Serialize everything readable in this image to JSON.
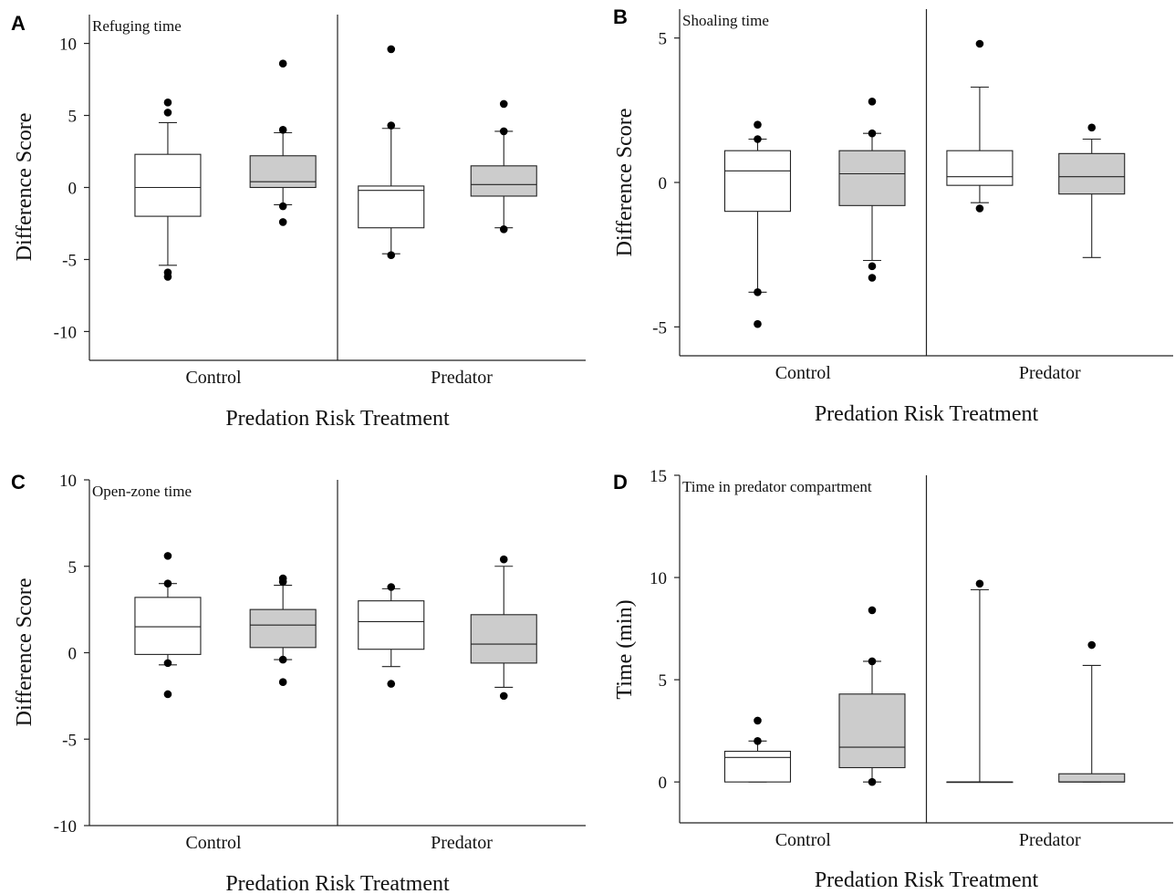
{
  "figure": {
    "background": "#ffffff",
    "box_colors": {
      "Control group": "#ffffff",
      "Treatment group": "#cccccc"
    },
    "line_color": "#222222",
    "outlier_color": "#000000"
  },
  "chart_data": [
    {
      "panel": "A",
      "type": "box",
      "title": "Refuging time",
      "xlabel": "Predation Risk Treatment",
      "ylabel": "Difference Score",
      "ylim": [
        -12,
        12
      ],
      "yticks": [
        10,
        5,
        0,
        -5,
        -10
      ],
      "categories": [
        "Control",
        "Predator"
      ],
      "boxes": [
        {
          "category": "Control",
          "fill": "white",
          "whisker_low": -5.4,
          "q1": -2.0,
          "median": 0.0,
          "q3": 2.3,
          "whisker_high": 4.5,
          "outliers": [
            5.9,
            5.2,
            -5.9,
            -6.2
          ]
        },
        {
          "category": "Control",
          "fill": "gray",
          "whisker_low": -1.2,
          "q1": 0.0,
          "median": 0.4,
          "q3": 2.2,
          "whisker_high": 3.8,
          "outliers": [
            8.6,
            4.0,
            -1.3,
            -2.4
          ]
        },
        {
          "category": "Predator",
          "fill": "white",
          "whisker_low": -4.6,
          "q1": -2.8,
          "median": -0.2,
          "q3": 0.1,
          "whisker_high": 4.1,
          "outliers": [
            9.6,
            4.3,
            -4.7
          ]
        },
        {
          "category": "Predator",
          "fill": "gray",
          "whisker_low": -2.8,
          "q1": -0.6,
          "median": 0.2,
          "q3": 1.5,
          "whisker_high": 3.9,
          "outliers": [
            5.8,
            3.9,
            -2.9
          ]
        }
      ]
    },
    {
      "panel": "B",
      "type": "box",
      "title": "Shoaling time",
      "xlabel": "Predation Risk Treatment",
      "ylabel": "Difference Score",
      "ylim": [
        -6,
        6
      ],
      "yticks": [
        5,
        0,
        -5
      ],
      "categories": [
        "Control",
        "Predator"
      ],
      "boxes": [
        {
          "category": "Control",
          "fill": "white",
          "whisker_low": -3.8,
          "q1": -1.0,
          "median": 0.4,
          "q3": 1.1,
          "whisker_high": 1.5,
          "outliers": [
            2.0,
            1.5,
            -3.8,
            -4.9
          ]
        },
        {
          "category": "Control",
          "fill": "gray",
          "whisker_low": -2.7,
          "q1": -0.8,
          "median": 0.3,
          "q3": 1.1,
          "whisker_high": 1.7,
          "outliers": [
            2.8,
            1.7,
            -2.9,
            -3.3
          ]
        },
        {
          "category": "Predator",
          "fill": "white",
          "whisker_low": -0.7,
          "q1": -0.1,
          "median": 0.2,
          "q3": 1.1,
          "whisker_high": 3.3,
          "outliers": [
            4.8,
            -0.9
          ]
        },
        {
          "category": "Predator",
          "fill": "gray",
          "whisker_low": -2.6,
          "q1": -0.4,
          "median": 0.2,
          "q3": 1.0,
          "whisker_high": 1.5,
          "outliers": [
            1.9
          ]
        }
      ]
    },
    {
      "panel": "C",
      "type": "box",
      "title": "Open-zone time",
      "xlabel": "Predation Risk Treatment",
      "ylabel": "Difference Score",
      "ylim": [
        -10,
        10
      ],
      "yticks": [
        10,
        5,
        0,
        -5,
        -10
      ],
      "categories": [
        "Control",
        "Predator"
      ],
      "boxes": [
        {
          "category": "Control",
          "fill": "white",
          "whisker_low": -0.7,
          "q1": -0.1,
          "median": 1.5,
          "q3": 3.2,
          "whisker_high": 4.0,
          "outliers": [
            5.6,
            4.0,
            -0.6,
            -2.4
          ]
        },
        {
          "category": "Control",
          "fill": "gray",
          "whisker_low": -0.4,
          "q1": 0.3,
          "median": 1.6,
          "q3": 2.5,
          "whisker_high": 3.9,
          "outliers": [
            4.3,
            4.1,
            -0.4,
            -1.7
          ]
        },
        {
          "category": "Predator",
          "fill": "white",
          "whisker_low": -0.8,
          "q1": 0.2,
          "median": 1.8,
          "q3": 3.0,
          "whisker_high": 3.7,
          "outliers": [
            3.8,
            -1.8
          ]
        },
        {
          "category": "Predator",
          "fill": "gray",
          "whisker_low": -2.0,
          "q1": -0.6,
          "median": 0.5,
          "q3": 2.2,
          "whisker_high": 5.0,
          "outliers": [
            5.4,
            -2.5
          ]
        }
      ]
    },
    {
      "panel": "D",
      "type": "box",
      "title": "Time in predator compartment",
      "xlabel": "Predation Risk Treatment",
      "ylabel": "Time (min)",
      "ylim": [
        -2,
        15
      ],
      "yticks": [
        15,
        10,
        5,
        0
      ],
      "categories": [
        "Control",
        "Predator"
      ],
      "boxes": [
        {
          "category": "Control",
          "fill": "white",
          "whisker_low": 0.0,
          "q1": 0.0,
          "median": 1.2,
          "q3": 1.5,
          "whisker_high": 2.0,
          "outliers": [
            3.0,
            2.0
          ]
        },
        {
          "category": "Control",
          "fill": "gray",
          "whisker_low": 0.0,
          "q1": 0.7,
          "median": 1.7,
          "q3": 4.3,
          "whisker_high": 5.9,
          "outliers": [
            8.4,
            5.9,
            0.0
          ]
        },
        {
          "category": "Predator",
          "fill": "white",
          "whisker_low": 0.0,
          "q1": 0.0,
          "median": 0.0,
          "q3": 0.0,
          "whisker_high": 9.4,
          "outliers": [
            9.7
          ]
        },
        {
          "category": "Predator",
          "fill": "gray",
          "whisker_low": 0.0,
          "q1": 0.0,
          "median": 0.0,
          "q3": 0.4,
          "whisker_high": 5.7,
          "outliers": [
            6.7
          ]
        }
      ]
    }
  ]
}
